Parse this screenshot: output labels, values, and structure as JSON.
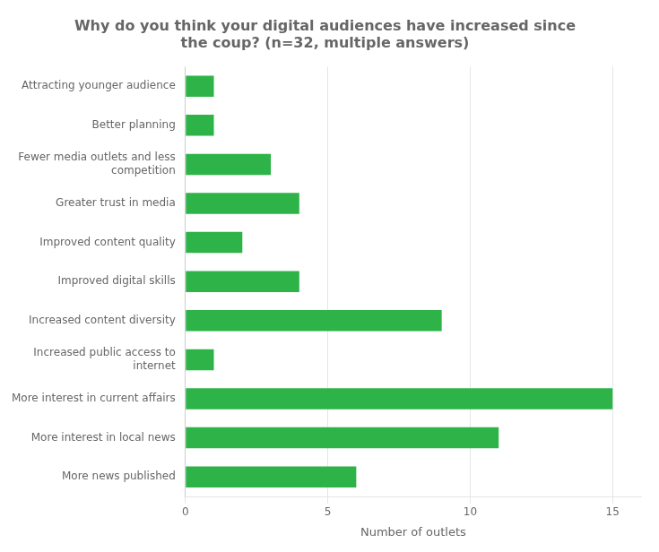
{
  "chart_data": {
    "type": "bar",
    "orientation": "horizontal",
    "title": "Why do you think your digital audiences have increased since\nthe coup? (n=32, multiple answers)",
    "categories": [
      "More news published",
      "More interest in local news",
      "More interest in current affairs",
      "Increased public access to\ninternet",
      "Increased content diversity",
      "Improved digital skills",
      "Improved content quality",
      "Greater trust in media",
      "Fewer media outlets and less\ncompetition",
      "Better planning",
      "Attracting younger audience"
    ],
    "values": [
      6,
      11,
      15,
      1,
      9,
      4,
      2,
      4,
      3,
      1,
      1
    ],
    "color": "#2EB349",
    "xlabel": "Number of outlets",
    "xlim": [
      0,
      16
    ],
    "xticks": [
      0,
      5,
      10,
      15
    ],
    "grid": true
  }
}
